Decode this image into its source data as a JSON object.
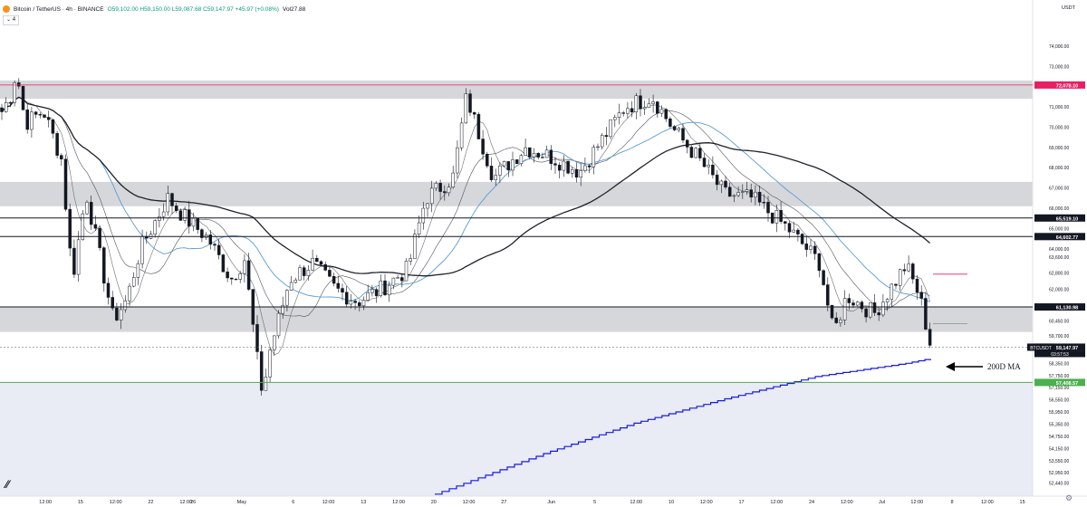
{
  "header": {
    "symbol": "Bitcoin / TetherUS · 4h · BINANCE",
    "ohlc": "O59,102.00 H59,150.00 L59,087.68 C59,147.97 +45.97 (+0.08%)",
    "volume": "Vol27.88",
    "indicator_toggle": "⌄ 4",
    "currency": "USDT",
    "settings_icon": "gear-icon"
  },
  "annotation": {
    "label": "200D MA"
  },
  "colors": {
    "up": "#131722",
    "down": "#131722",
    "ma200d": "#1a1adb",
    "ma_blue": "#5b9bd5",
    "ma_dark": "#1f2228",
    "support_green": "#4caf50",
    "pink": "#e91e63",
    "zone": "#cfd0d4"
  },
  "chart_data": {
    "type": "candlestick",
    "y_range": [
      51800,
      75200
    ],
    "price_ticks": [
      "74,000.00",
      "73,000.00",
      "72,000.00",
      "71,000.00",
      "70,000.00",
      "69,000.00",
      "68,000.00",
      "67,000.00",
      "66,000.00",
      "65,000.00",
      "64,000.00",
      "63,600.00",
      "62,800.00",
      "62,000.00",
      "61,200.00",
      "60,450.00",
      "59,700.00",
      "58,950.00",
      "58,350.00",
      "57,750.00",
      "57,150.00",
      "56,550.00",
      "55,950.00",
      "55,350.00",
      "54,750.00",
      "54,150.00",
      "53,550.00",
      "52,950.00",
      "52,440.00"
    ],
    "price_tick_values": [
      74000,
      73000,
      72000,
      71000,
      70000,
      69000,
      68000,
      67000,
      66000,
      65000,
      64000,
      63600,
      62800,
      62000,
      61200,
      60450,
      59700,
      58950,
      58350,
      57750,
      57150,
      56550,
      55950,
      55350,
      54750,
      54150,
      53550,
      52950,
      52440
    ],
    "time_ticks": [
      "12:00",
      "15",
      "12:00",
      "22",
      "12:00",
      "26",
      "May",
      "6",
      "12:00",
      "13",
      "12:00",
      "20",
      "12:00",
      "27",
      "Jun",
      "5",
      "12:00",
      "10",
      "12:00",
      "17",
      "12:00",
      "24",
      "12:00",
      "Jul",
      "12:00",
      "8",
      "12:00",
      "15"
    ],
    "time_tick_positions": [
      0.044,
      0.078,
      0.112,
      0.146,
      0.18,
      0.187,
      0.234,
      0.284,
      0.318,
      0.352,
      0.386,
      0.42,
      0.454,
      0.488,
      0.534,
      0.576,
      0.616,
      0.65,
      0.684,
      0.718,
      0.752,
      0.786,
      0.82,
      0.854,
      0.888,
      0.922,
      0.956,
      0.99
    ],
    "levels": [
      {
        "label": "72,078.10",
        "value": 72078.1,
        "style": "pink"
      },
      {
        "label": "65,519.10",
        "value": 65519.1,
        "style": "dark"
      },
      {
        "label": "64,602.77",
        "value": 64602.77,
        "style": "dark"
      },
      {
        "label": "61,130.98",
        "value": 61130.98,
        "style": "dark"
      },
      {
        "label": "59,147.97",
        "value": 59147.97,
        "style": "last"
      },
      {
        "label": "57,408.57",
        "value": 57408.57,
        "style": "green"
      }
    ],
    "last_price_symbol": "BTCUSDT",
    "countdown": "03:57:53",
    "zones": [
      {
        "top": 72300,
        "bottom": 71400
      },
      {
        "top": 67300,
        "bottom": 66100
      },
      {
        "top": 61130,
        "bottom": 59900
      }
    ],
    "anchors": [
      [
        0,
        70600
      ],
      [
        12,
        71600
      ],
      [
        18,
        72800
      ],
      [
        28,
        70200
      ],
      [
        48,
        70800
      ],
      [
        68,
        68400
      ],
      [
        80,
        62500
      ],
      [
        95,
        66800
      ],
      [
        125,
        60500
      ],
      [
        140,
        61500
      ],
      [
        155,
        64000
      ],
      [
        185,
        66500
      ],
      [
        205,
        65500
      ],
      [
        230,
        64500
      ],
      [
        255,
        62500
      ],
      [
        270,
        63500
      ],
      [
        283,
        58800
      ],
      [
        290,
        56800
      ],
      [
        298,
        59000
      ],
      [
        320,
        62500
      ],
      [
        345,
        63300
      ],
      [
        370,
        62000
      ],
      [
        395,
        61400
      ],
      [
        420,
        62000
      ],
      [
        450,
        63000
      ],
      [
        470,
        66500
      ],
      [
        500,
        67500
      ],
      [
        515,
        71500
      ],
      [
        545,
        67500
      ],
      [
        580,
        69000
      ],
      [
        610,
        68500
      ],
      [
        640,
        67800
      ],
      [
        690,
        71000
      ],
      [
        720,
        71500
      ],
      [
        745,
        69800
      ],
      [
        770,
        68500
      ],
      [
        800,
        66700
      ],
      [
        830,
        66500
      ],
      [
        870,
        65000
      ],
      [
        905,
        63300
      ],
      [
        920,
        59800
      ],
      [
        935,
        61700
      ],
      [
        965,
        60800
      ],
      [
        990,
        62500
      ],
      [
        1000,
        63200
      ],
      [
        1015,
        61700
      ],
      [
        1028,
        59100
      ]
    ],
    "ma_200d": [
      [
        480,
        51900
      ],
      [
        600,
        53900
      ],
      [
        700,
        55400
      ],
      [
        800,
        56600
      ],
      [
        900,
        57700
      ],
      [
        1000,
        58350
      ],
      [
        1028,
        58600
      ]
    ]
  }
}
